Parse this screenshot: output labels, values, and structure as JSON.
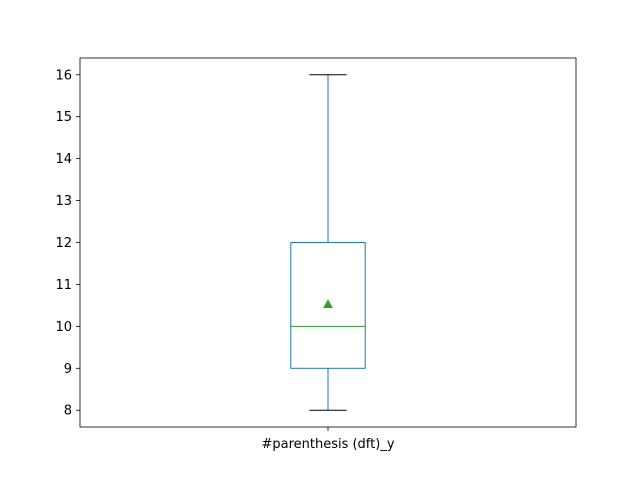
{
  "chart_data": {
    "type": "box",
    "categories": [
      "#parenthesis (dft)_y"
    ],
    "boxes": [
      {
        "label": "#parenthesis (dft)_y",
        "whisker_low": 8,
        "q1": 9,
        "median": 10,
        "q3": 12,
        "whisker_high": 16,
        "mean": 10.53
      }
    ],
    "y_ticks": [
      8,
      9,
      10,
      11,
      12,
      13,
      14,
      15,
      16
    ],
    "ylim": [
      7.6,
      16.4
    ],
    "title": "",
    "xlabel": "",
    "ylabel": "",
    "grid": false,
    "colors": {
      "box": "#1f77b4",
      "median": "#2ca02c",
      "mean_marker": "#2ca02c",
      "caps": "#000000",
      "axes": "#000000"
    }
  }
}
